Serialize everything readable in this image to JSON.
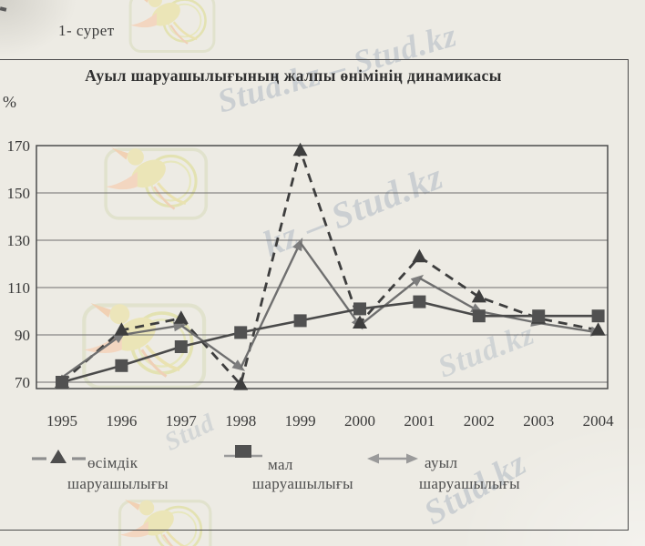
{
  "figure_label": "1- сурет",
  "watermarks": {
    "brand": "Stud.kz",
    "texts": [
      "Stud.kz – Stud.kz",
      "kz – Stud.kz",
      "Stud.kz",
      "Stud.kz",
      "Stud"
    ]
  },
  "chart": {
    "title": "Ауыл шаруашылығының жалпы өнімінің динамикасы",
    "y_axis_unit": "%"
  },
  "chart_data": {
    "type": "line",
    "title": "Ауыл шаруашылығының жалпы өнімінің динамикасы",
    "ylabel": "%",
    "xlabel": "",
    "categories": [
      "1995",
      "1996",
      "1997",
      "1998",
      "1999",
      "2000",
      "2001",
      "2002",
      "2003",
      "2004"
    ],
    "series": [
      {
        "name": "өсімдік шаруашылығы",
        "line_style": "dashed",
        "marker": "triangle",
        "color": "#3e3e3e",
        "values": [
          70,
          92,
          97,
          69,
          168,
          95,
          123,
          106,
          97,
          92
        ]
      },
      {
        "name": "мал шаруашылығы",
        "line_style": "solid",
        "marker": "square",
        "color": "#4a4a4a",
        "values": [
          70,
          77,
          85,
          91,
          96,
          101,
          104,
          98,
          98,
          98
        ]
      },
      {
        "name": "ауыл шаруашылығы",
        "line_style": "solid-arrows",
        "marker": "arrowhead",
        "color": "#6f6f6f",
        "values": [
          72,
          90,
          94,
          76,
          129,
          94,
          114,
          100,
          95,
          91
        ]
      }
    ],
    "yticks": [
      70,
      90,
      110,
      130,
      150,
      170
    ],
    "ylim": [
      70,
      170
    ],
    "grid": "horizontal",
    "legend_position": "bottom"
  },
  "legend": {
    "entries": [
      {
        "line1": "өсімдік",
        "line2": "шаруашылығы",
        "marker": "dashed-triangle"
      },
      {
        "line1": "мал",
        "line2": "шаруашылығы",
        "marker": "square-line"
      },
      {
        "line1": "ауыл",
        "line2": "шаруашылығы",
        "marker": "double-arrow"
      }
    ]
  }
}
